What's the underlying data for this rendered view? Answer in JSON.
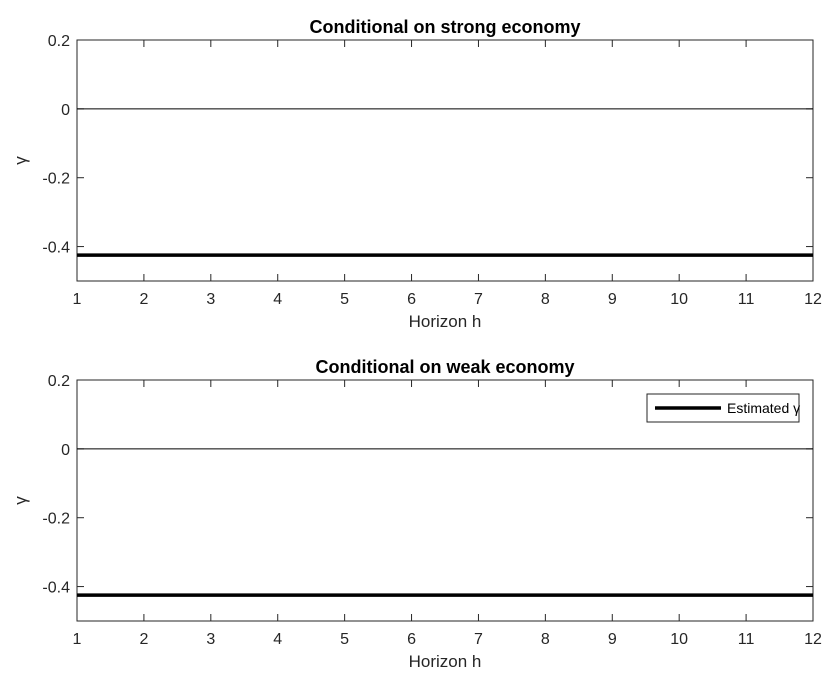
{
  "chart_data": [
    {
      "type": "line",
      "title": "Conditional on strong economy",
      "xlabel": "Horizon h",
      "ylabel": "γ",
      "xlim": [
        1,
        12
      ],
      "ylim": [
        -0.5,
        0.2
      ],
      "xticks": [
        1,
        2,
        3,
        4,
        5,
        6,
        7,
        8,
        9,
        10,
        11,
        12
      ],
      "yticks": [
        0.2,
        0,
        -0.2,
        -0.4
      ],
      "ytick_labels": [
        "0.2",
        "0",
        "-0.2",
        "-0.4"
      ],
      "grid": false,
      "series": [
        {
          "x": [
            1,
            12
          ],
          "values": [
            -0.425,
            -0.425
          ],
          "color": "#000000"
        }
      ],
      "reference_lines": [
        {
          "y": 0,
          "color": "#000000"
        }
      ],
      "legend": null
    },
    {
      "type": "line",
      "title": "Conditional on weak economy",
      "xlabel": "Horizon h",
      "ylabel": "γ",
      "xlim": [
        1,
        12
      ],
      "ylim": [
        -0.5,
        0.2
      ],
      "xticks": [
        1,
        2,
        3,
        4,
        5,
        6,
        7,
        8,
        9,
        10,
        11,
        12
      ],
      "yticks": [
        0.2,
        0,
        -0.2,
        -0.4
      ],
      "ytick_labels": [
        "0.2",
        "0",
        "-0.2",
        "-0.4"
      ],
      "grid": false,
      "series": [
        {
          "name": "Estimated γ",
          "x": [
            1,
            12
          ],
          "values": [
            -0.425,
            -0.425
          ],
          "color": "#000000"
        }
      ],
      "reference_lines": [
        {
          "y": 0,
          "color": "#000000"
        }
      ],
      "legend": "top-right"
    }
  ]
}
